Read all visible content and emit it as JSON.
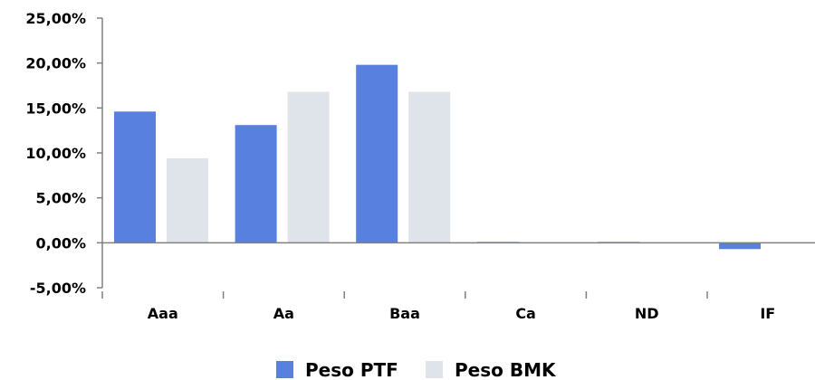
{
  "chart_data": {
    "type": "bar",
    "title": "",
    "xlabel": "",
    "ylabel": "",
    "categories": [
      "Aaa",
      "Aa",
      "Baa",
      "Ca",
      "ND",
      "IF"
    ],
    "series": [
      {
        "name": "Peso PTF",
        "color": "#5880de",
        "values": [
          14.6,
          13.1,
          19.8,
          0.1,
          0.1,
          -0.7
        ]
      },
      {
        "name": "Peso BMK",
        "color": "#dfe3ea",
        "values": [
          9.4,
          16.8,
          16.8,
          0.0,
          0.0,
          0.0
        ]
      }
    ],
    "ylim": [
      -5,
      25
    ],
    "y_ticks": [
      {
        "value": 25,
        "label": "25,00%"
      },
      {
        "value": 20,
        "label": "20,00%"
      },
      {
        "value": 15,
        "label": "15,00%"
      },
      {
        "value": 10,
        "label": "10,00%"
      },
      {
        "value": 5,
        "label": "5,00%"
      },
      {
        "value": 0,
        "label": "0,00%"
      },
      {
        "value": -5,
        "label": "-5,00%"
      }
    ],
    "grid": false,
    "legend_position": "bottom-center"
  }
}
